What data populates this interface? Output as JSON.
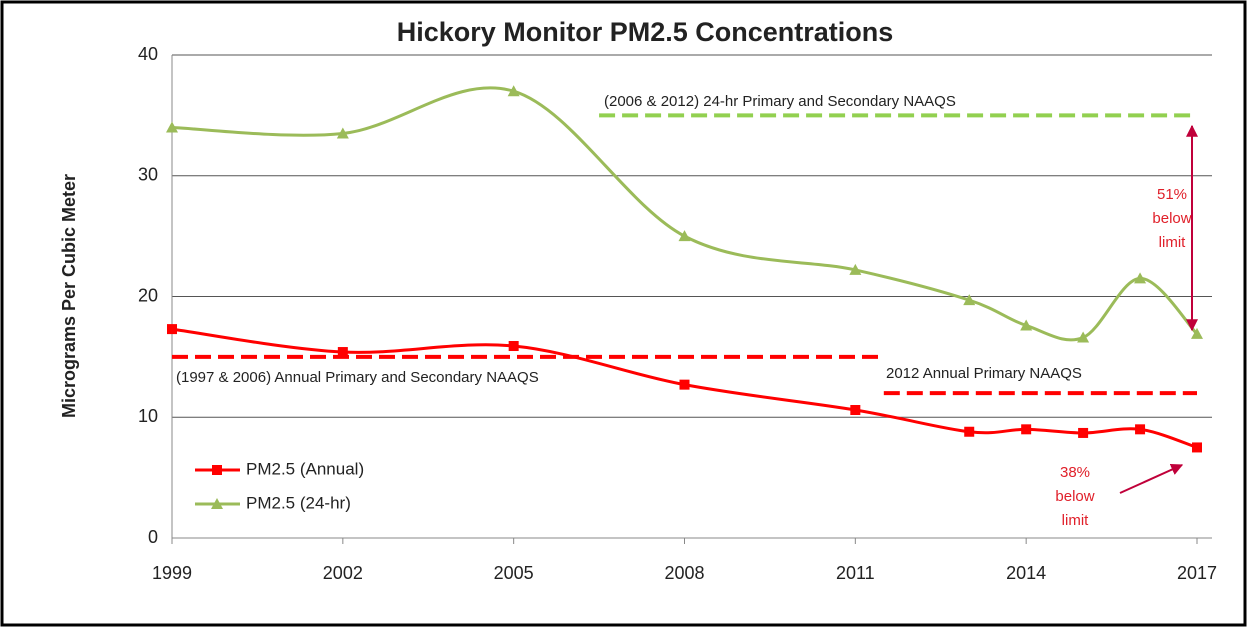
{
  "chart_data": {
    "type": "line",
    "title": "Hickory Monitor PM2.5 Concentrations",
    "ylabel": "Micrograms Per Cubic Meter",
    "x": [
      1999,
      2002,
      2005,
      2008,
      2011,
      2013,
      2014,
      2015,
      2016,
      2017
    ],
    "xlim": [
      1999,
      2017
    ],
    "xticks": [
      1999,
      2002,
      2005,
      2008,
      2011,
      2014,
      2017
    ],
    "ylim": [
      0,
      40
    ],
    "yticks": [
      0,
      10,
      20,
      30,
      40
    ],
    "grid": true,
    "legend": "lower left",
    "series": [
      {
        "name": "PM2.5 (Annual)",
        "color": "#ff0000",
        "marker": "square",
        "values": [
          17.3,
          15.4,
          15.9,
          12.7,
          10.6,
          8.8,
          9.0,
          8.7,
          9.0,
          7.5
        ]
      },
      {
        "name": "PM2.5 (24-hr)",
        "color": "#9bbb59",
        "marker": "triangle",
        "values": [
          34,
          33.5,
          37,
          25,
          22.2,
          19.7,
          17.6,
          16.6,
          21.5,
          16.9
        ]
      }
    ],
    "reference_lines": [
      {
        "value": 35,
        "from": 2006.5,
        "to": 2017,
        "color": "#92d050",
        "label": "(2006 & 2012) 24-hr Primary and Secondary  NAAQS"
      },
      {
        "value": 15,
        "from": 1999,
        "to": 2011.5,
        "color": "#ff0000",
        "label": "(1997 & 2006) Annual Primary and Secondary NAAQS"
      },
      {
        "value": 12,
        "from": 2011.5,
        "to": 2017,
        "color": "#ff0000",
        "label": "2012 Annual Primary NAAQS"
      }
    ],
    "annotations": [
      [
        "51%",
        "below",
        "limit"
      ],
      [
        "38%",
        "below",
        "limit"
      ]
    ]
  }
}
